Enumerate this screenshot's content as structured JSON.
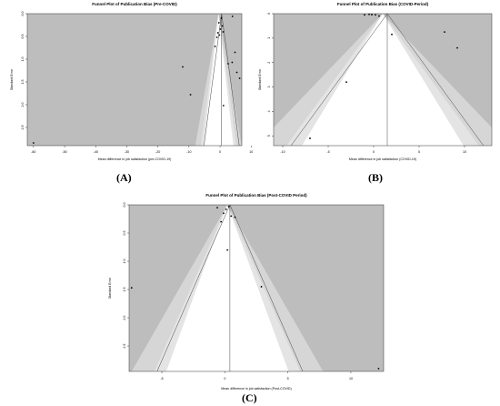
{
  "figure": {
    "panel_labels": [
      "(A)",
      "(B)",
      "(C)"
    ]
  },
  "chart_data": [
    {
      "type": "scatter",
      "title": "Funnel Plot of Publication Bias (Pre-COVID)",
      "xlabel": "Mean difference in job satisfaction (pre-COVID-19)",
      "ylabel": "Standard Error",
      "xlim": [
        -62,
        7
      ],
      "ylim": [
        2.9,
        0
      ],
      "y_reversed": true,
      "xticks": [
        -60,
        -50,
        -40,
        -30,
        -20,
        -10,
        0,
        10
      ],
      "xtick_labels": [
        "-60",
        "-50",
        "-40",
        "-30",
        "-20",
        "-10",
        "0",
        "10"
      ],
      "yticks": [
        0,
        0.5,
        1,
        1.5,
        2,
        2.5
      ],
      "ytick_labels": [
        "0.0",
        "0.5",
        "1.0",
        "1.5",
        "2.0",
        "2.5"
      ],
      "center_fixed": -0.5,
      "center_random": 0.5,
      "contour_z": [
        1.645,
        1.96,
        2.576
      ],
      "colors": {
        "outer": "#bdbdbd",
        "mid": "#d6d6d6",
        "inner": "#ffffff",
        "point": "#000000"
      },
      "points": [
        {
          "x": -60,
          "y": 2.84
        },
        {
          "x": -12,
          "y": 1.17
        },
        {
          "x": -9.5,
          "y": 1.78
        },
        {
          "x": -1.6,
          "y": 0.72
        },
        {
          "x": -1.0,
          "y": 0.52
        },
        {
          "x": -0.7,
          "y": 0.42
        },
        {
          "x": -0.4,
          "y": 0.2
        },
        {
          "x": -0.2,
          "y": 0.47
        },
        {
          "x": 0.1,
          "y": 0.34
        },
        {
          "x": 0.4,
          "y": 0.1
        },
        {
          "x": 0.7,
          "y": 0.27
        },
        {
          "x": 1.0,
          "y": 0.4
        },
        {
          "x": 1.1,
          "y": 2.02
        },
        {
          "x": 2.6,
          "y": 1.1
        },
        {
          "x": 4.0,
          "y": 0.06
        },
        {
          "x": 3.9,
          "y": 1.07
        },
        {
          "x": 4.8,
          "y": 0.85
        },
        {
          "x": 5.4,
          "y": 1.29
        },
        {
          "x": 6.3,
          "y": 1.42
        }
      ]
    },
    {
      "type": "scatter",
      "title": "Funnel Plot of Publication Bias (COVID-Period)",
      "xlabel": "Mean difference in job satisfaction (COVID-19)",
      "ylabel": "Standard Error",
      "xlim": [
        -11,
        13
      ],
      "ylim": [
        5.4,
        0
      ],
      "y_reversed": true,
      "xticks": [
        -10,
        -5,
        0,
        5,
        10
      ],
      "xtick_labels": [
        "-10",
        "-5",
        "0",
        "5",
        "10"
      ],
      "yticks": [
        0,
        1,
        2,
        3,
        4,
        5
      ],
      "ytick_labels": [
        "0",
        "1",
        "2",
        "3",
        "4",
        "5"
      ],
      "center_fixed": 1.0,
      "center_random": 1.5,
      "contour_z": [
        1.645,
        1.96,
        2.576
      ],
      "colors": {
        "outer": "#bdbdbd",
        "mid": "#d6d6d6",
        "inner": "#ffffff",
        "point": "#000000"
      },
      "points": [
        {
          "x": -1.0,
          "y": 0.05
        },
        {
          "x": -0.5,
          "y": 0.03
        },
        {
          "x": -0.2,
          "y": 0.04
        },
        {
          "x": 0.2,
          "y": 0.05
        },
        {
          "x": 0.6,
          "y": 0.1
        },
        {
          "x": 2.0,
          "y": 0.85
        },
        {
          "x": 7.8,
          "y": 0.75
        },
        {
          "x": 9.2,
          "y": 1.4
        },
        {
          "x": -3.0,
          "y": 2.8
        },
        {
          "x": -7.0,
          "y": 5.1
        }
      ]
    },
    {
      "type": "scatter",
      "title": "Funnel Plot of Publication Bias (Post-COVID Period)",
      "xlabel": "Mean difference in job satisfaction (Post-COVID)",
      "ylabel": "Standard Error",
      "xlim": [
        -7.6,
        12.6
      ],
      "ylim": [
        2.95,
        0
      ],
      "y_reversed": true,
      "xticks": [
        -5,
        0,
        5,
        10
      ],
      "xtick_labels": [
        "-5",
        "0",
        "5",
        "10"
      ],
      "yticks": [
        0,
        0.5,
        1,
        1.5,
        2,
        2.5
      ],
      "ytick_labels": [
        "0.0",
        "0.5",
        "1.0",
        "1.5",
        "2.0",
        "2.5"
      ],
      "center_fixed": 0.2,
      "center_random": 0.4,
      "contour_z": [
        1.645,
        1.96,
        2.576
      ],
      "colors": {
        "outer": "#bdbdbd",
        "mid": "#d6d6d6",
        "inner": "#ffffff",
        "point": "#000000"
      },
      "points": [
        {
          "x": -7.4,
          "y": 1.47
        },
        {
          "x": -0.6,
          "y": 0.05
        },
        {
          "x": -0.3,
          "y": 0.3
        },
        {
          "x": -0.1,
          "y": 0.15
        },
        {
          "x": 0.1,
          "y": 0.08
        },
        {
          "x": 0.3,
          "y": 0.03
        },
        {
          "x": 0.5,
          "y": 0.2
        },
        {
          "x": 0.8,
          "y": 0.22
        },
        {
          "x": 0.2,
          "y": 0.8
        },
        {
          "x": 2.9,
          "y": 1.45
        },
        {
          "x": 12.2,
          "y": 2.9
        }
      ]
    }
  ]
}
